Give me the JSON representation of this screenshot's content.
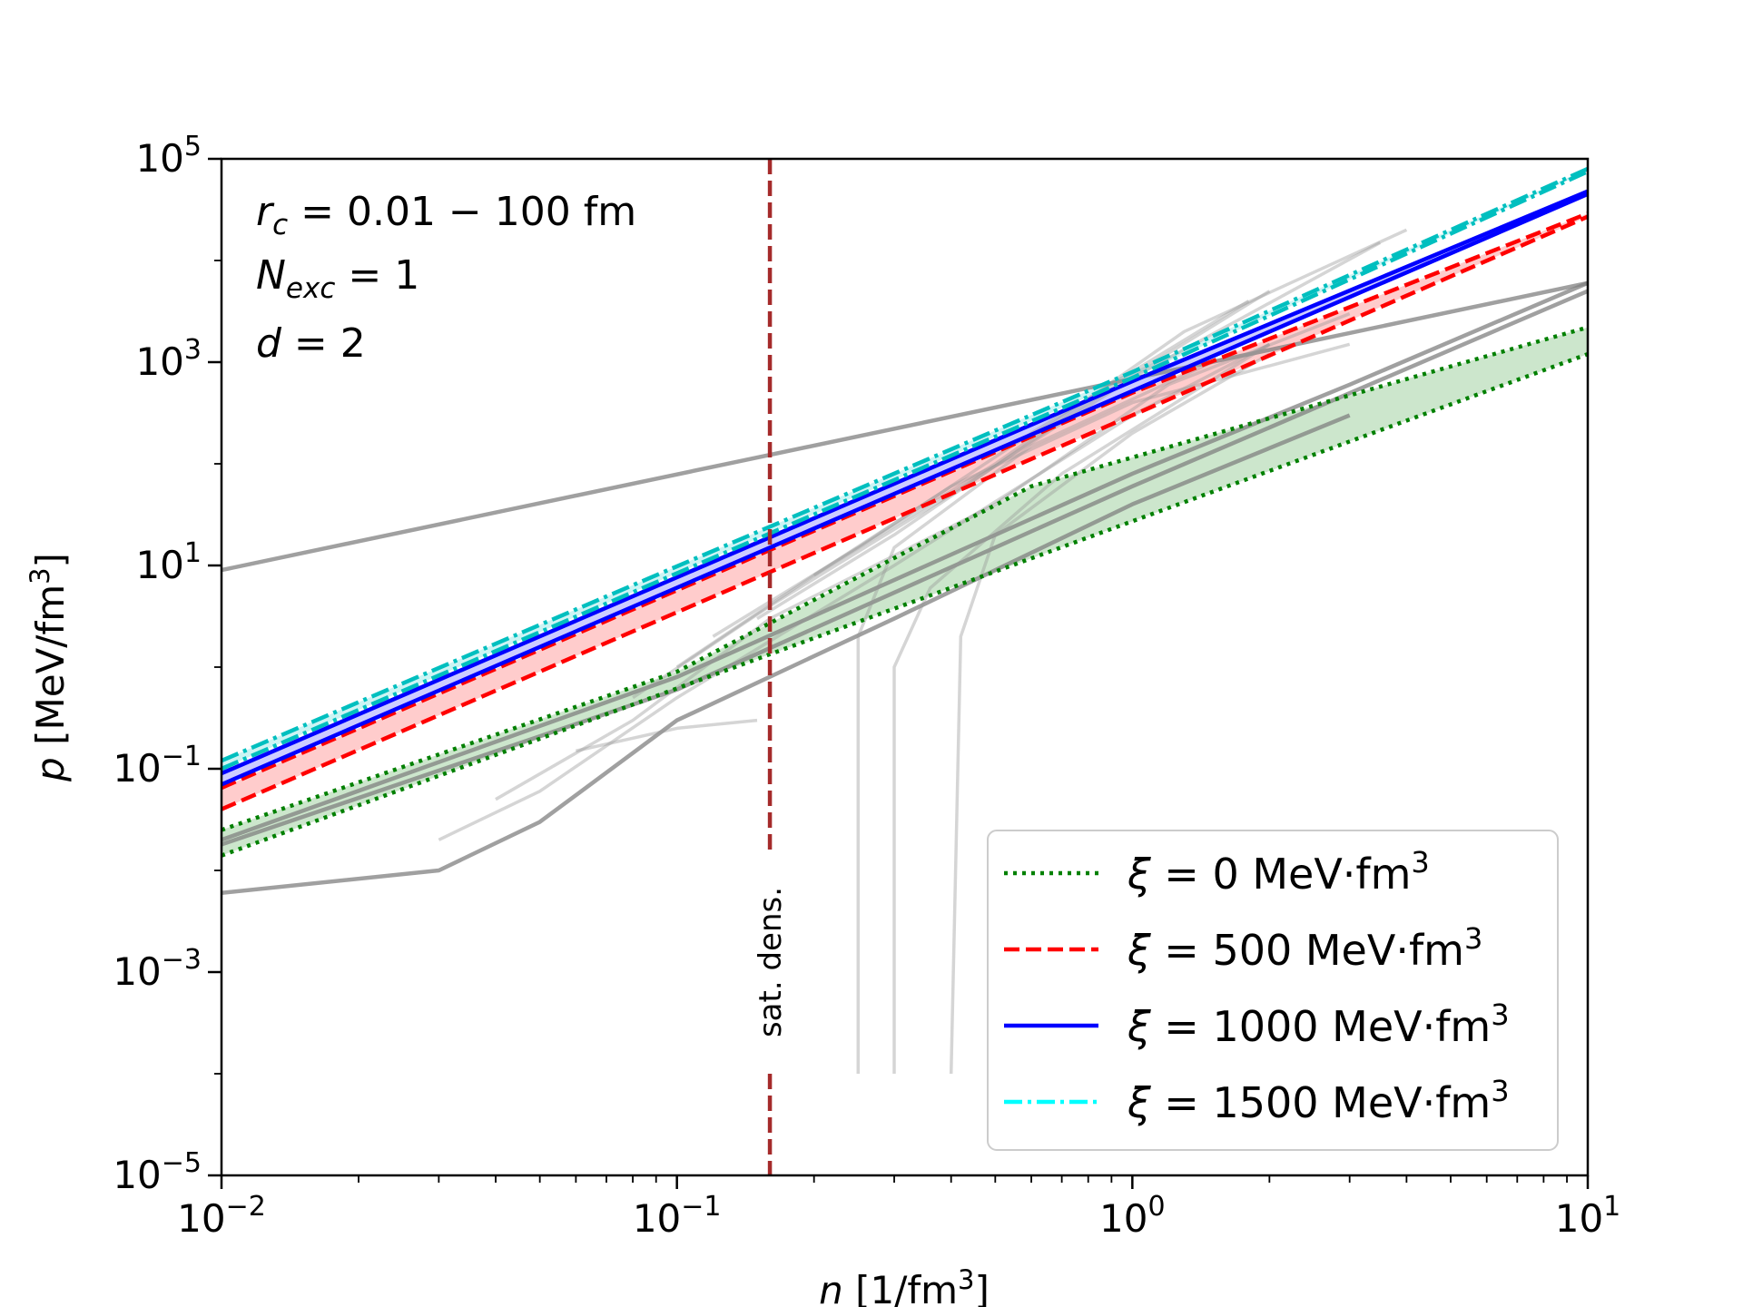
{
  "chart_data": {
    "type": "line",
    "title": "",
    "x_scale": "log",
    "y_scale": "log",
    "xlim": [
      0.01,
      10
    ],
    "ylim": [
      1e-05,
      100000
    ],
    "xlabel": {
      "var": "n",
      "unit_pre": " [1/fm",
      "unit_sup": "3",
      "unit_post": "]"
    },
    "ylabel": {
      "var": "p",
      "unit_pre": " [MeV/fm",
      "unit_sup": "3",
      "unit_post": "]"
    },
    "x_ticks": [
      {
        "value": 0.01,
        "base": "10",
        "exp": "−2"
      },
      {
        "value": 0.1,
        "base": "10",
        "exp": "−1"
      },
      {
        "value": 1,
        "base": "10",
        "exp": "0"
      },
      {
        "value": 10,
        "base": "10",
        "exp": "1"
      }
    ],
    "y_ticks": [
      {
        "value": 1e-05,
        "base": "10",
        "exp": "−5"
      },
      {
        "value": 0.001,
        "base": "10",
        "exp": "−3"
      },
      {
        "value": 0.1,
        "base": "10",
        "exp": "−1"
      },
      {
        "value": 10,
        "base": "10",
        "exp": "1"
      },
      {
        "value": 1000,
        "base": "10",
        "exp": "3"
      },
      {
        "value": 100000,
        "base": "10",
        "exp": "5"
      }
    ],
    "annotations": {
      "rc": {
        "var": "r",
        "sub": "c",
        "rest": " = 0.01 − 100 fm"
      },
      "nexc": {
        "var": "N",
        "sub": "exc",
        "rest": " = 1"
      },
      "d": {
        "var": "d",
        "rest": " = 2"
      }
    },
    "saturation_density": {
      "x": 0.16,
      "label": "sat. dens.",
      "color": "#a52a2a"
    },
    "legend": {
      "position": "lower right",
      "entries": [
        {
          "symbol": "ξ",
          "rest": " = 0 MeV·fm",
          "sup": "3",
          "color": "#008000",
          "style": "dotted"
        },
        {
          "symbol": "ξ",
          "rest": " = 500 MeV·fm",
          "sup": "3",
          "color": "#ff0000",
          "style": "dashed"
        },
        {
          "symbol": "ξ",
          "rest": " = 1000 MeV·fm",
          "sup": "3",
          "color": "#0000ff",
          "style": "solid"
        },
        {
          "symbol": "ξ",
          "rest": " = 1500 MeV·fm",
          "sup": "3",
          "color": "#00ffff",
          "style": "dashdot"
        }
      ]
    },
    "bands": [
      {
        "name": "xi=0",
        "color": "#008000",
        "fill": "rgba(0,128,0,0.2)",
        "style": "dotted",
        "lower": {
          "x": [
            0.01,
            10
          ],
          "y": [
            0.014,
            1200
          ]
        },
        "upper": {
          "x": [
            0.01,
            0.1,
            0.6,
            10
          ],
          "y": [
            0.025,
            0.9,
            60,
            2200
          ]
        }
      },
      {
        "name": "xi=500",
        "color": "#ff0000",
        "fill": "rgba(255,0,0,0.2)",
        "style": "dashed",
        "lower": {
          "x": [
            0.01,
            1,
            10
          ],
          "y": [
            0.04,
            300,
            27000
          ]
        },
        "upper": {
          "x": [
            0.01,
            1,
            10
          ],
          "y": [
            0.065,
            500,
            29000
          ]
        }
      },
      {
        "name": "xi=1000",
        "color": "#0000ff",
        "fill": "rgba(0,0,255,0.2)",
        "style": "solid",
        "lower": {
          "x": [
            0.01,
            1,
            10
          ],
          "y": [
            0.07,
            520,
            45000
          ]
        },
        "upper": {
          "x": [
            0.01,
            1,
            10
          ],
          "y": [
            0.09,
            650,
            48000
          ]
        }
      },
      {
        "name": "xi=1500",
        "color": "#00bfbf",
        "fill": "rgba(0,200,200,0.2)",
        "style": "dashdot",
        "lower": {
          "x": [
            0.01,
            1,
            10
          ],
          "y": [
            0.1,
            700,
            75000
          ]
        },
        "upper": {
          "x": [
            0.01,
            1,
            10
          ],
          "y": [
            0.12,
            800,
            80000
          ]
        }
      }
    ],
    "background_eos_curves": [
      {
        "x": [
          0.01,
          10
        ],
        "y": [
          9,
          6000
        ]
      },
      {
        "x": [
          0.01,
          0.03,
          0.05,
          0.1,
          0.3,
          1,
          3
        ],
        "y": [
          0.006,
          0.01,
          0.03,
          0.3,
          3,
          40,
          300
        ]
      },
      {
        "x": [
          0.01,
          0.1,
          1,
          3,
          10
        ],
        "y": [
          0.02,
          0.8,
          80,
          600,
          6000
        ]
      },
      {
        "x": [
          0.01,
          0.1,
          1,
          10
        ],
        "y": [
          0.018,
          0.6,
          60,
          5000
        ]
      },
      {
        "x": [
          0.03,
          0.05,
          0.1,
          0.3,
          1,
          2
        ],
        "y": [
          0.02,
          0.06,
          0.5,
          10,
          300,
          1500
        ]
      },
      {
        "x": [
          0.04,
          0.08,
          0.16,
          0.5,
          1.2,
          3
        ],
        "y": [
          0.05,
          0.3,
          3,
          40,
          600,
          3000
        ]
      },
      {
        "x": [
          0.08,
          0.16,
          0.4,
          1,
          3.5
        ],
        "y": [
          0.5,
          4,
          50,
          700,
          15000
        ]
      },
      {
        "x": [
          0.1,
          0.2,
          0.5,
          1.3,
          4
        ],
        "y": [
          1,
          8,
          100,
          2000,
          20000
        ]
      },
      {
        "x": [
          0.12,
          0.25,
          0.6,
          1.8
        ],
        "y": [
          2,
          15,
          200,
          4000
        ]
      },
      {
        "x": [
          0.15,
          0.3,
          0.8,
          2
        ],
        "y": [
          3,
          20,
          400,
          5000
        ]
      },
      {
        "x": [
          0.06,
          0.1,
          0.15
        ],
        "y": [
          0.15,
          0.25,
          0.3
        ]
      },
      {
        "x": [
          0.2,
          0.4,
          1,
          3
        ],
        "y": [
          8,
          60,
          400,
          1500
        ]
      },
      {
        "x": [
          0.25,
          0.25,
          0.3,
          0.6,
          1.5
        ],
        "y": [
          0.0001,
          2,
          15,
          150,
          1000
        ]
      },
      {
        "x": [
          0.3,
          0.3,
          0.36,
          0.7,
          2
        ],
        "y": [
          0.0001,
          1,
          6,
          80,
          1500
        ]
      },
      {
        "x": [
          0.4,
          0.42,
          0.5,
          1,
          2
        ],
        "y": [
          0.0001,
          2,
          20,
          200,
          1200
        ]
      }
    ]
  }
}
